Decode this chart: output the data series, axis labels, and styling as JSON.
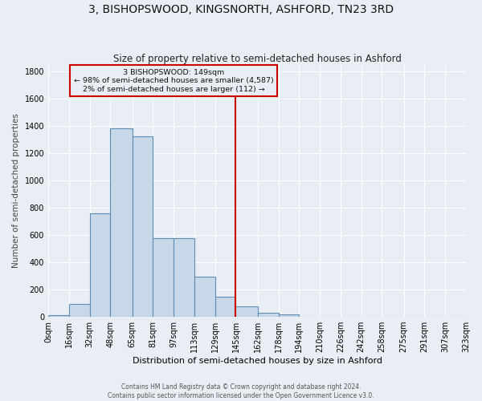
{
  "title": "3, BISHOPSWOOD, KINGSNORTH, ASHFORD, TN23 3RD",
  "subtitle": "Size of property relative to semi-detached houses in Ashford",
  "xlabel": "Distribution of semi-detached houses by size in Ashford",
  "ylabel": "Number of semi-detached properties",
  "footer_line1": "Contains HM Land Registry data © Crown copyright and database right 2024.",
  "footer_line2": "Contains public sector information licensed under the Open Government Licence v3.0.",
  "bin_labels": [
    "0sqm",
    "16sqm",
    "32sqm",
    "48sqm",
    "65sqm",
    "81sqm",
    "97sqm",
    "113sqm",
    "129sqm",
    "145sqm",
    "162sqm",
    "178sqm",
    "194sqm",
    "210sqm",
    "226sqm",
    "242sqm",
    "258sqm",
    "275sqm",
    "291sqm",
    "307sqm",
    "323sqm"
  ],
  "bin_edges": [
    0,
    16,
    32,
    48,
    65,
    81,
    97,
    113,
    129,
    145,
    162,
    178,
    194,
    210,
    226,
    242,
    258,
    275,
    291,
    307,
    323
  ],
  "bar_heights": [
    10,
    95,
    760,
    1385,
    1325,
    580,
    580,
    295,
    150,
    75,
    30,
    20,
    0,
    0,
    0,
    0,
    0,
    0,
    0,
    0
  ],
  "bar_color": "#c8d8e8",
  "bar_edge_color": "#5b8db8",
  "vline_x": 145,
  "vline_color": "#cc0000",
  "annotation_title": "3 BISHOPSWOOD: 149sqm",
  "annotation_line1": "← 98% of semi-detached houses are smaller (4,587)",
  "annotation_line2": "2% of semi-detached houses are larger (112) →",
  "annotation_box_color": "#cc0000",
  "ylim": [
    0,
    1850
  ],
  "yticks": [
    0,
    200,
    400,
    600,
    800,
    1000,
    1200,
    1400,
    1600,
    1800
  ],
  "bg_color": "#e8eef4",
  "grid_color": "#ffffff",
  "title_fontsize": 10,
  "subtitle_fontsize": 8.5
}
